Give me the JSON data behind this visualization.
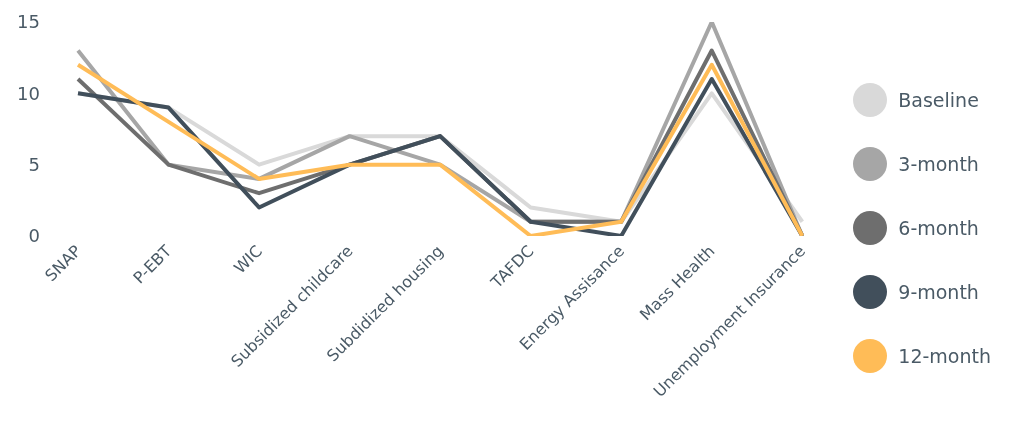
{
  "chart_data": {
    "type": "line",
    "categories": [
      "SNAP",
      "P-EBT",
      "WIC",
      "Subsidized childcare",
      "Subdidized housing",
      "TAFDC",
      "Energy Assisance",
      "Mass Health",
      "Unemployment Insurance"
    ],
    "series": [
      {
        "name": "Baseline",
        "color": "#d9d9d9",
        "values": [
          10,
          9,
          5,
          7,
          7,
          2,
          1,
          10,
          1
        ]
      },
      {
        "name": "3-month",
        "color": "#a6a6a6",
        "values": [
          13,
          5,
          4,
          7,
          5,
          1,
          1,
          15,
          0
        ]
      },
      {
        "name": "6-month",
        "color": "#6e6e6e",
        "values": [
          11,
          5,
          3,
          5,
          7,
          1,
          1,
          13,
          0
        ]
      },
      {
        "name": "9-month",
        "color": "#414f5b",
        "values": [
          10,
          9,
          2,
          5,
          7,
          1,
          0,
          11,
          0
        ]
      },
      {
        "name": "12-month",
        "color": "#ffbc57",
        "values": [
          12,
          8,
          4,
          5,
          5,
          0,
          1,
          12,
          0
        ]
      }
    ],
    "ylim": [
      0,
      15
    ],
    "yticks": [
      0,
      5,
      10,
      15
    ],
    "grid": false,
    "legend": "right",
    "marker": "none",
    "line_style": "solid"
  }
}
